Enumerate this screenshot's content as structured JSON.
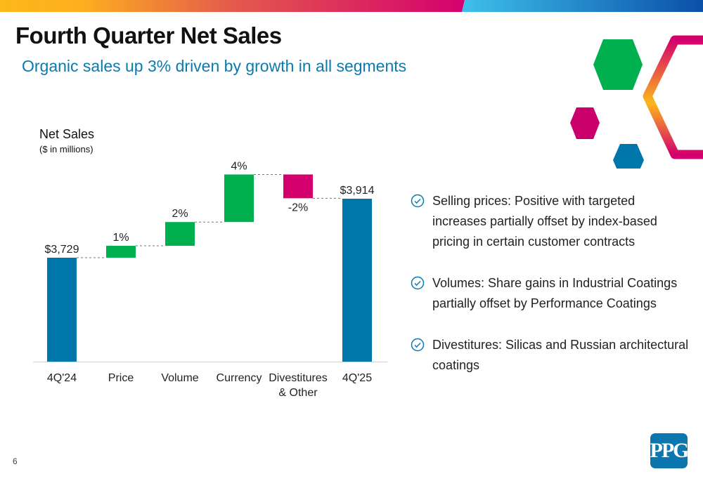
{
  "header": {
    "title": "Fourth Quarter Net Sales",
    "subtitle": "Organic sales up 3% driven by growth in all segments"
  },
  "colors": {
    "total": "#0077AA",
    "increase": "#00B04F",
    "decrease": "#D4006E",
    "subtitle": "#0A7AB0"
  },
  "chart_data": {
    "type": "waterfall",
    "ylabel": "Net Sales",
    "yunit": "($ in millions)",
    "categories": [
      "4Q'24",
      "Price",
      "Volume",
      "Currency",
      "Divestitures & Other",
      "4Q'25"
    ],
    "category_lines": [
      [
        "4Q'24"
      ],
      [
        "Price"
      ],
      [
        "Volume"
      ],
      [
        "Currency"
      ],
      [
        "Divestitures",
        "& Other"
      ],
      [
        "4Q'25"
      ]
    ],
    "kinds": [
      "total",
      "delta",
      "delta",
      "delta",
      "delta",
      "total"
    ],
    "values": [
      3729,
      1,
      2,
      4,
      -2,
      3914
    ],
    "labels": [
      "$3,729",
      "1%",
      "2%",
      "4%",
      "-2%",
      "$3,914"
    ],
    "value_units": [
      "USD millions",
      "percent",
      "percent",
      "percent",
      "percent",
      "USD millions"
    ],
    "connectors": "dashed",
    "grid": false
  },
  "bullets": [
    {
      "icon": "check-circle-icon",
      "text": "Selling prices: Positive with targeted increases partially offset by index-based pricing in certain customer contracts"
    },
    {
      "icon": "check-circle-icon",
      "text": "Volumes: Share gains in Industrial Coatings partially offset by Performance Coatings"
    },
    {
      "icon": "check-circle-icon",
      "text": "Divestitures: Silicas and Russian architectural coatings"
    }
  ],
  "footer": {
    "page_number": "6",
    "logo": "PPG"
  }
}
